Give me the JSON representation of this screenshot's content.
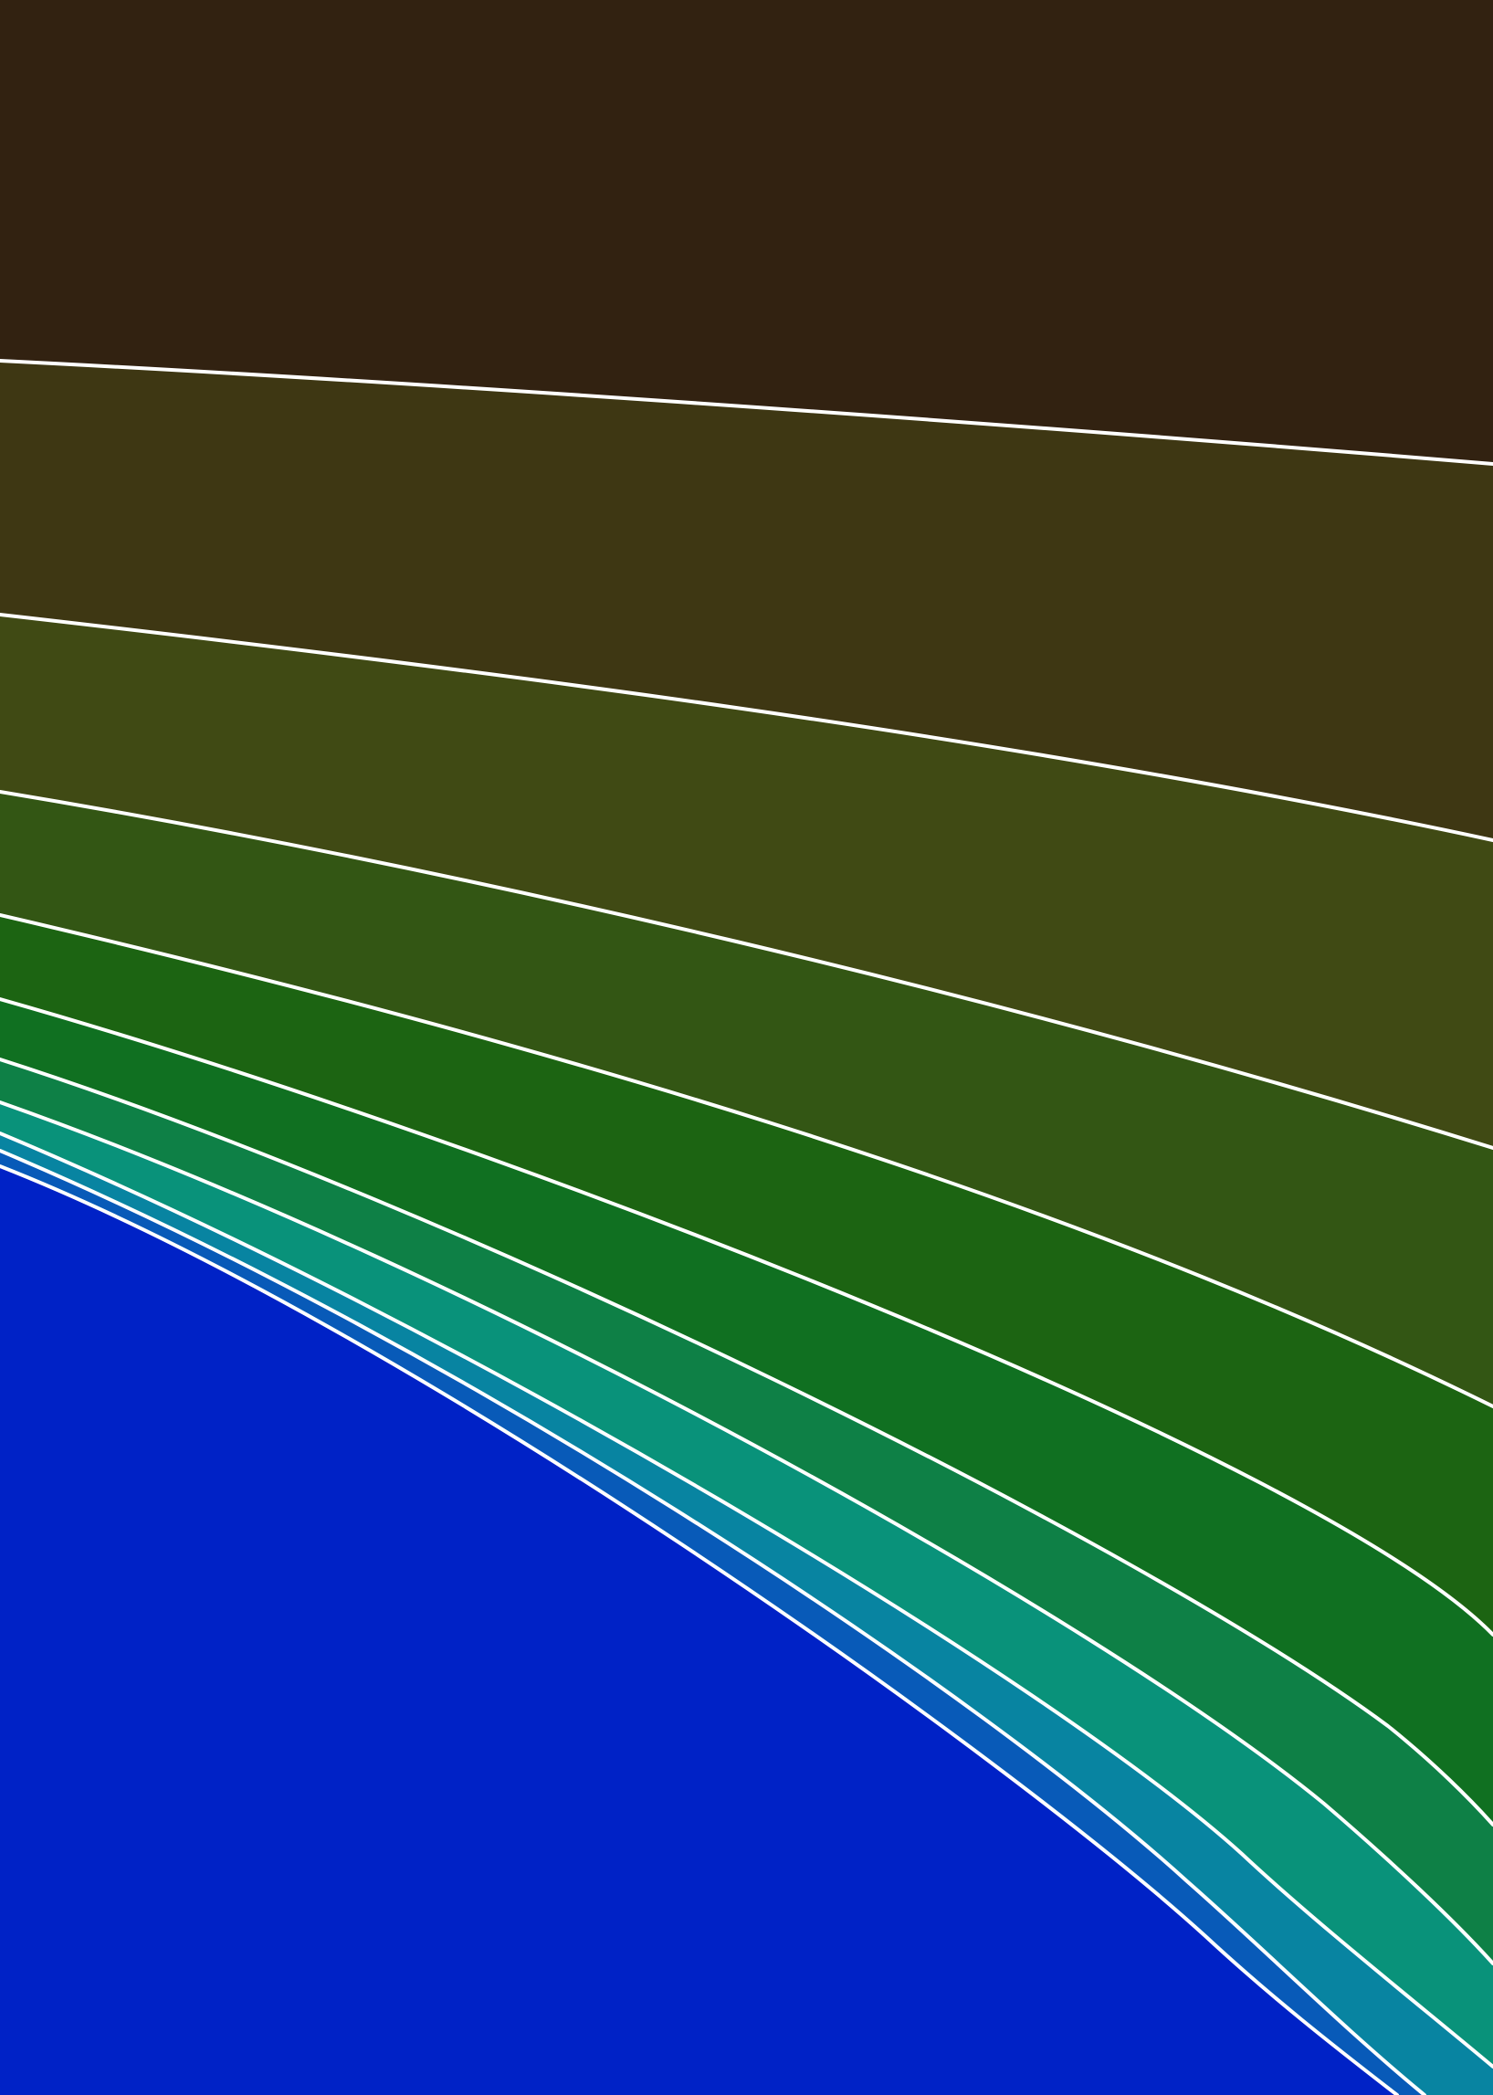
{
  "artwork": {
    "bands": [
      {
        "name": "band-1",
        "color": "#322211"
      },
      {
        "name": "band-2",
        "color": "#3e3713"
      },
      {
        "name": "band-3",
        "color": "#404a14"
      },
      {
        "name": "band-4",
        "color": "#335614"
      },
      {
        "name": "band-5",
        "color": "#1c6412"
      },
      {
        "name": "band-6",
        "color": "#107021"
      },
      {
        "name": "band-7",
        "color": "#0e8046"
      },
      {
        "name": "band-8",
        "color": "#09927a"
      },
      {
        "name": "band-9",
        "color": "#0884a1"
      },
      {
        "name": "band-10",
        "color": "#085ab8"
      },
      {
        "name": "band-11",
        "color": "#0022c6"
      }
    ],
    "line_color": "#ffffff"
  }
}
